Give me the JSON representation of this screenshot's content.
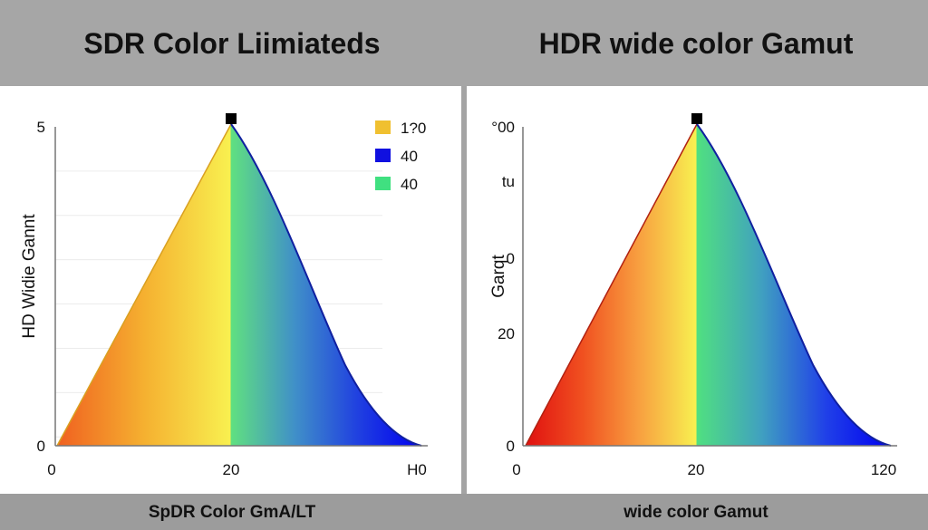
{
  "charts_header": {
    "left_title": "SDR Color Liimiateds",
    "right_title": "HDR wide color Gamut"
  },
  "chart_data": [
    {
      "type": "area",
      "title": "SDR Color Liimiateds",
      "xlabel": "SpDR Color GmA/LT",
      "ylabel": "HD Widie Gannt",
      "x_ticks": [
        "0",
        "20",
        "H0"
      ],
      "y_ticks": [
        "0",
        "5"
      ],
      "shape": "triangle rising linearly from the first x tick to a peak at the \"20\" tick, then a concave decline to the last x tick",
      "peak_at_x_tick": "20",
      "peak_marker": "square",
      "fill": "spectral gradient orange-yellow-green-blue",
      "gradient_colors": [
        "#f06020",
        "#f5b030",
        "#f8f050",
        "#60e080",
        "#4090c8",
        "#2040e0",
        "#0000f0"
      ],
      "edge_colors": {
        "left": "#d9a020",
        "right": "#1020a0"
      },
      "grid": true,
      "legend_position": "top-right",
      "legend": [
        {
          "label": "1?0",
          "color": "#f0c030"
        },
        {
          "label": "40",
          "color": "#1010e0"
        },
        {
          "label": "40",
          "color": "#40e080"
        }
      ]
    },
    {
      "type": "area",
      "title": "HDR wide color Gamut",
      "xlabel": "wide color Gamut",
      "ylabel": "Garqt",
      "x_ticks": [
        "0",
        "20",
        "120"
      ],
      "y_ticks": [
        "0",
        "20",
        "0",
        "tu",
        "°00"
      ],
      "shape": "triangle rising linearly from the first x tick to a peak at the \"20\" tick, then a concave decline to the last x tick",
      "peak_at_x_tick": "20",
      "peak_marker": "square",
      "fill": "spectral gradient red-orange-yellow-green-blue",
      "gradient_colors": [
        "#e01010",
        "#f05020",
        "#f8a040",
        "#f8f050",
        "#50e080",
        "#40a0c0",
        "#2040e8",
        "#0000f0"
      ],
      "edge_colors": {
        "left": "#b02010",
        "right": "#1020a0"
      },
      "grid": false
    }
  ]
}
